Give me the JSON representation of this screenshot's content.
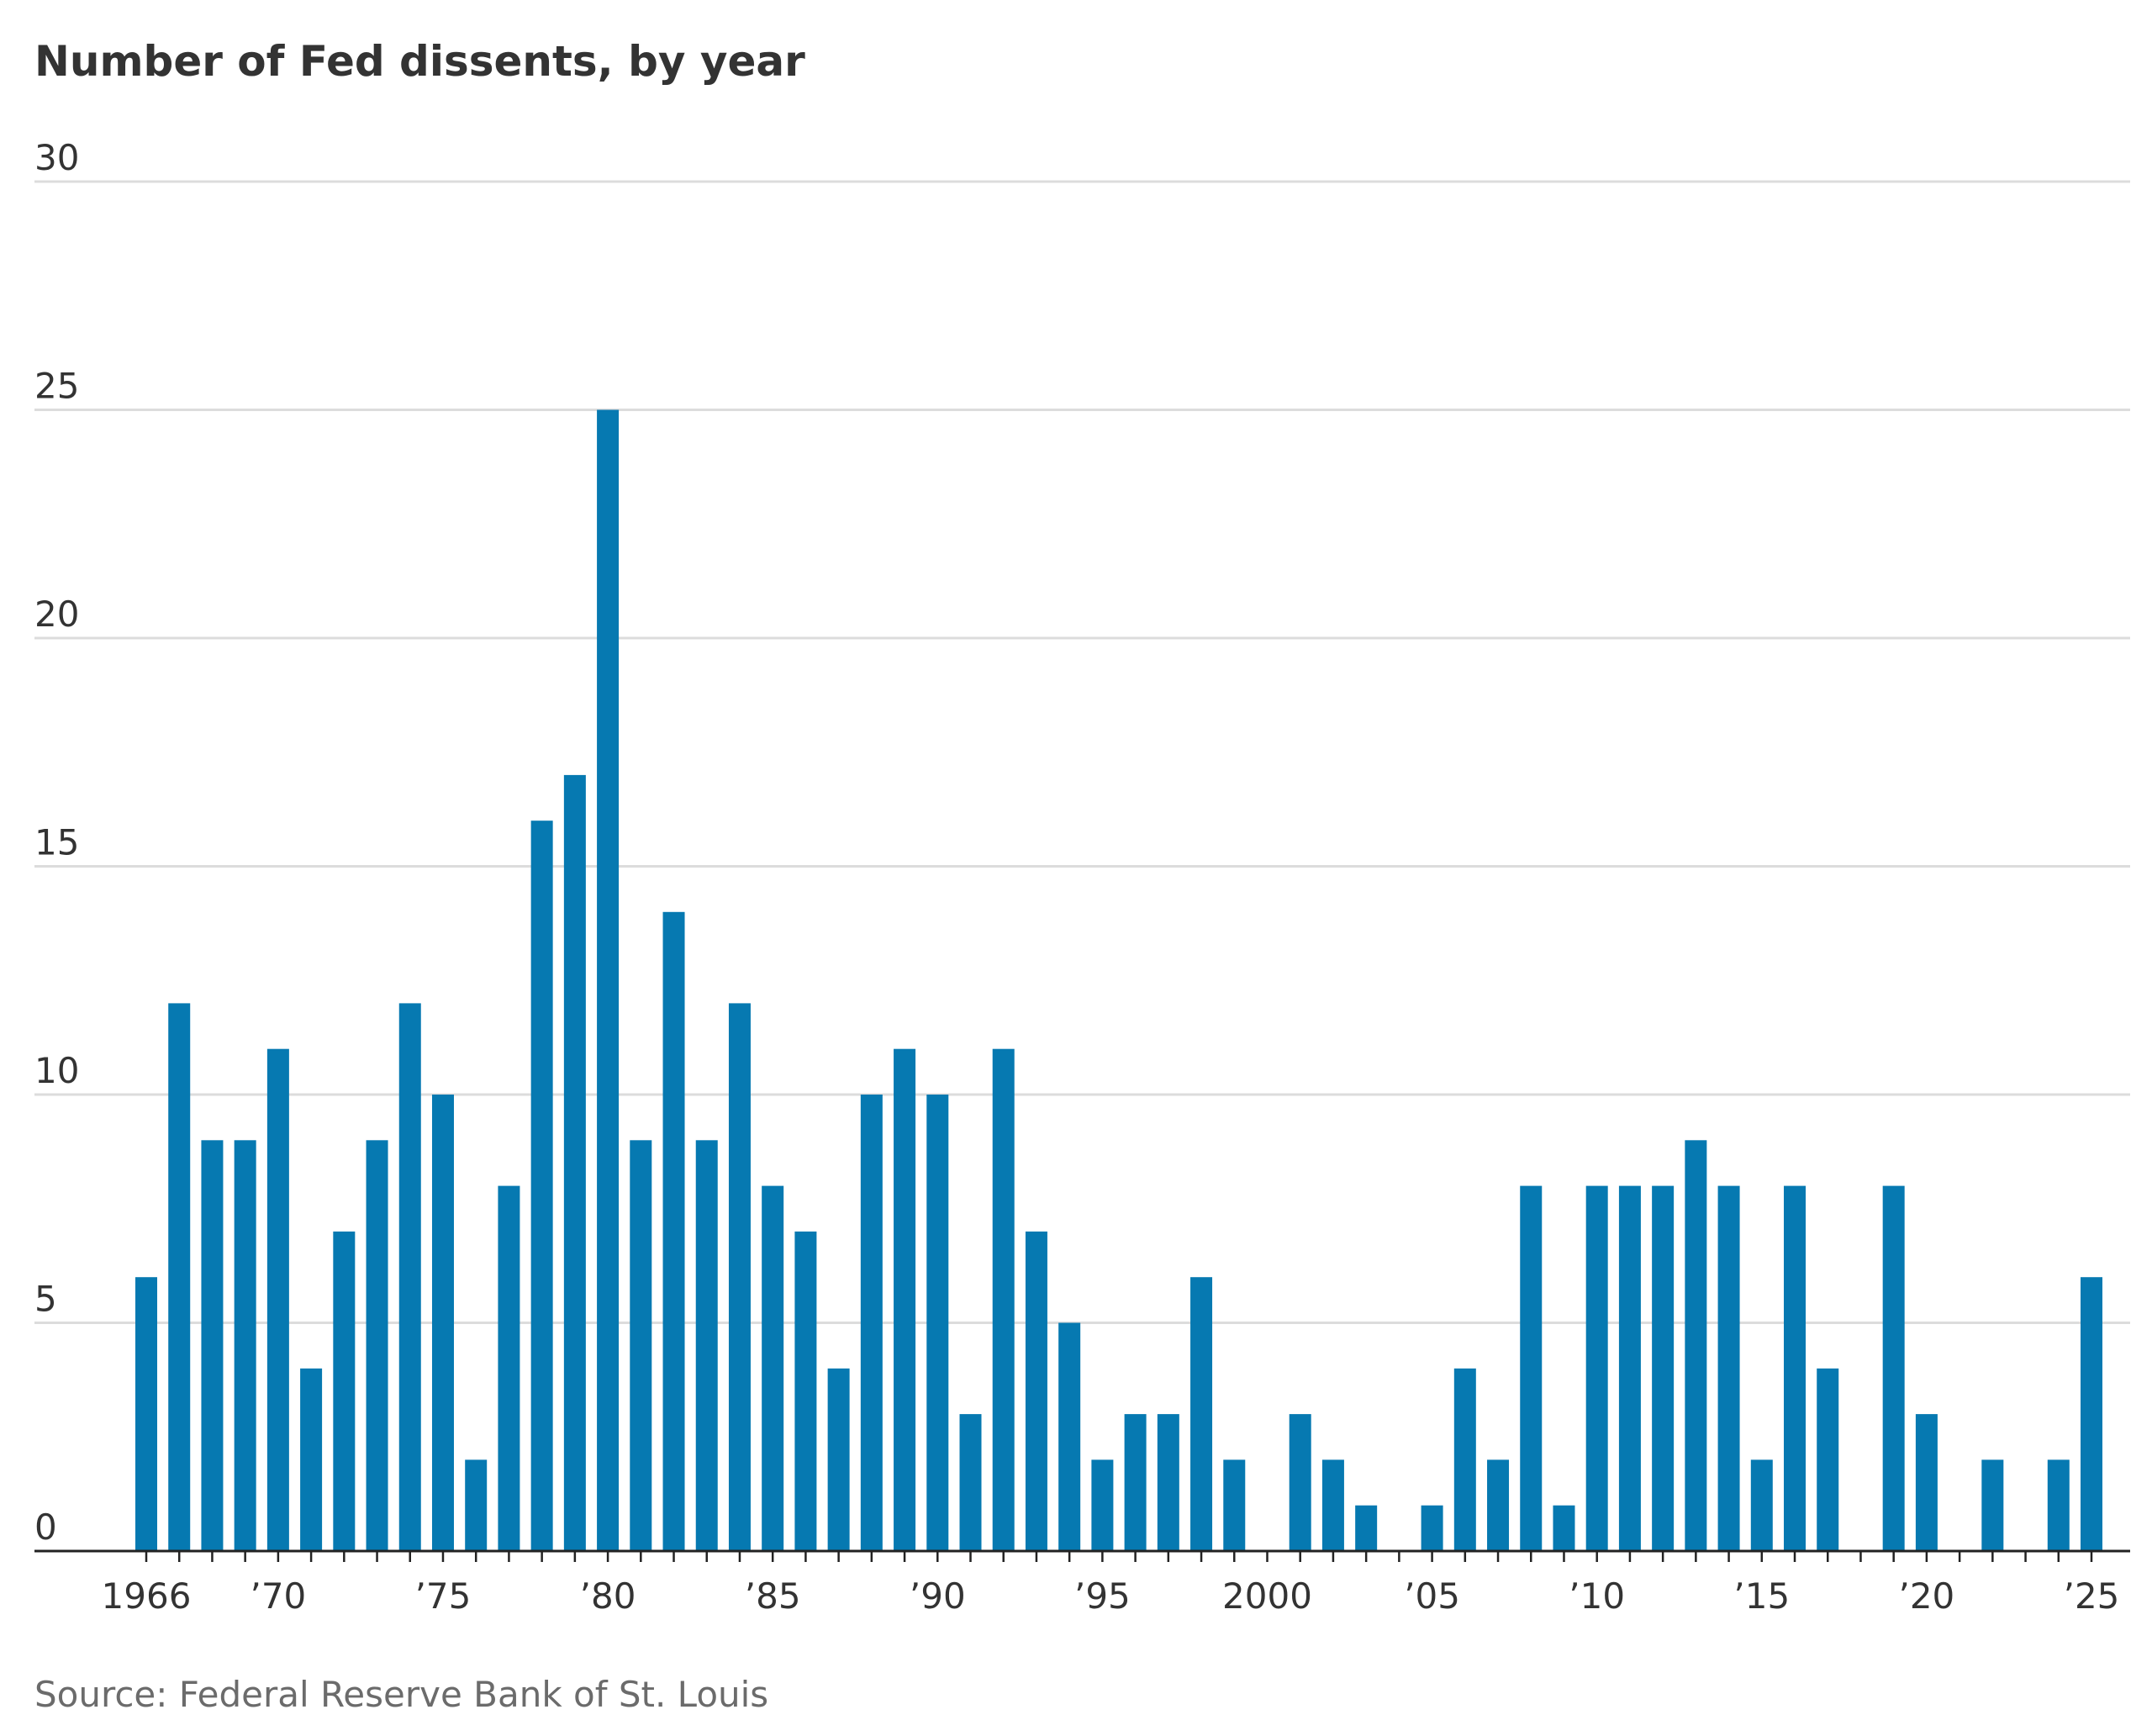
{
  "chart_data": {
    "type": "bar",
    "title": "Number of Fed dissents, by year",
    "source": "Source: Federal Reserve Bank of St. Louis",
    "categories": [
      "1966",
      null,
      null,
      null,
      "’70",
      null,
      null,
      null,
      null,
      "’75",
      null,
      null,
      null,
      null,
      "’80",
      null,
      null,
      null,
      null,
      "’85",
      null,
      null,
      null,
      null,
      "’90",
      null,
      null,
      null,
      null,
      "’95",
      null,
      null,
      null,
      null,
      "2000",
      null,
      null,
      null,
      null,
      "’05",
      null,
      null,
      null,
      null,
      "’10",
      null,
      null,
      null,
      null,
      "’15",
      null,
      null,
      null,
      null,
      "’20",
      null,
      null,
      null,
      null,
      "’25"
    ],
    "values": [
      6,
      12,
      9,
      9,
      11,
      4,
      7,
      9,
      12,
      10,
      2,
      8,
      16,
      17,
      25,
      9,
      14,
      9,
      12,
      8,
      7,
      4,
      10,
      11,
      10,
      3,
      11,
      7,
      5,
      2,
      3,
      3,
      6,
      2,
      0,
      3,
      2,
      1,
      0,
      1,
      4,
      2,
      8,
      1,
      8,
      8,
      8,
      9,
      8,
      2,
      8,
      4,
      0,
      8,
      3,
      0,
      2,
      0,
      2,
      6
    ],
    "color": "#0679b1",
    "ylim": [
      0,
      30
    ],
    "yticks": [
      0,
      5,
      10,
      15,
      20,
      25,
      30
    ],
    "grid": true
  }
}
